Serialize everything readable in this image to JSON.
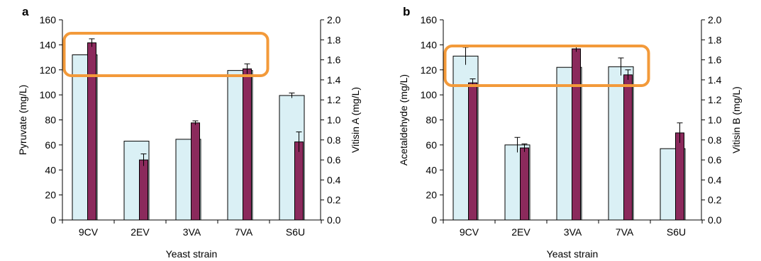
{
  "chart_data": [
    {
      "panel": "a",
      "type": "bar",
      "categories": [
        "9CV",
        "2EV",
        "3VA",
        "7VA",
        "S6U"
      ],
      "xlabel": "Yeast strain",
      "ylabel": "Pyruvate (mg/L)",
      "y2label": "Vitisin A (mg/L)",
      "ylim": [
        0,
        160
      ],
      "yticks": [
        "0",
        "20",
        "40",
        "60",
        "80",
        "100",
        "120",
        "140",
        "160"
      ],
      "y2lim": [
        0,
        2.0
      ],
      "y2ticks": [
        "0.0",
        "0.2",
        "0.4",
        "0.6",
        "0.8",
        "1.0",
        "1.2",
        "1.4",
        "1.6",
        "1.8",
        "2.0"
      ],
      "series": [
        {
          "values": [
            132,
            63,
            64.5,
            119.5,
            99.5
          ],
          "errors": [
            0,
            0,
            0,
            0,
            2
          ],
          "axis": "left",
          "color": "#daf0f5"
        },
        {
          "values": [
            1.77,
            0.6,
            0.97,
            1.51,
            0.78
          ],
          "errors": [
            0.04,
            0.06,
            0.02,
            0.05,
            0.1
          ],
          "axis": "right",
          "color": "#8b2a5c"
        }
      ],
      "grid": false,
      "legend": "none",
      "highlight_box": {
        "from": "9CV",
        "to": "7VA",
        "color": "#f39a3a"
      }
    },
    {
      "panel": "b",
      "type": "bar",
      "categories": [
        "9CV",
        "2EV",
        "3VA",
        "7VA",
        "S6U"
      ],
      "xlabel": "Yeast strain",
      "ylabel": "Acetaldehyde (mg/L)",
      "y2label": "Vitisin B (mg/L)",
      "ylim": [
        0,
        160
      ],
      "yticks": [
        "0",
        "20",
        "40",
        "60",
        "80",
        "100",
        "120",
        "140",
        "160"
      ],
      "y2lim": [
        0,
        2.0
      ],
      "y2ticks": [
        "0.0",
        "0.2",
        "0.4",
        "0.6",
        "0.8",
        "1.0",
        "1.2",
        "1.4",
        "1.6",
        "1.8",
        "2.0"
      ],
      "series": [
        {
          "values": [
            131,
            60,
            122,
            122.5,
            57
          ],
          "errors": [
            7,
            6,
            0,
            7,
            0
          ],
          "axis": "left",
          "color": "#daf0f5"
        },
        {
          "values": [
            1.37,
            0.72,
            1.71,
            1.45,
            0.87
          ],
          "errors": [
            0.04,
            0.04,
            0.03,
            0.05,
            0.1
          ],
          "axis": "right",
          "color": "#8b2a5c"
        }
      ],
      "grid": false,
      "legend": "none",
      "highlight_box": {
        "from": "9CV",
        "to": "7VA",
        "color": "#f39a3a"
      }
    }
  ]
}
